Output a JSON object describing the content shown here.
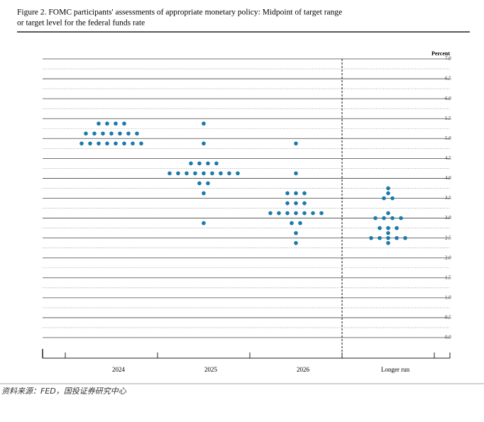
{
  "chart_data": {
    "type": "dot",
    "title": "Figure 2.  FOMC participants' assessments of appropriate monetary policy:  Midpoint of target range or target level for the federal funds rate",
    "title_lines": [
      "Figure 2.  FOMC participants' assessments of appropriate monetary policy:  Midpoint of target range",
      "or target level for the federal funds rate"
    ],
    "y_label": "Percent",
    "categories": [
      "2024",
      "2025",
      "2026",
      "Longer run"
    ],
    "color": "#1a7aaa",
    "ylim": [
      0,
      7
    ],
    "yticks": [
      {
        "value": 0,
        "label": "0.0"
      },
      {
        "value": 0.5,
        "label": "0.5"
      },
      {
        "value": 1,
        "label": "1.0"
      },
      {
        "value": 1.5,
        "label": "1.5"
      },
      {
        "value": 2,
        "label": "2.0"
      },
      {
        "value": 2.5,
        "label": "2.5"
      },
      {
        "value": 3,
        "label": "3.0"
      },
      {
        "value": 3.5,
        "label": "3.5"
      },
      {
        "value": 4,
        "label": "4.0"
      },
      {
        "value": 4.5,
        "label": "4.5"
      },
      {
        "value": 5,
        "label": "5.0"
      },
      {
        "value": 5.5,
        "label": "5.5"
      },
      {
        "value": 6,
        "label": "6.0"
      },
      {
        "value": 6.5,
        "label": "6.5"
      },
      {
        "value": 7,
        "label": "7.0"
      }
    ],
    "minor_yticks": [
      0.25,
      0.75,
      1.25,
      1.75,
      2.25,
      2.75,
      3.25,
      3.75,
      4.25,
      4.75,
      5.25,
      5.75,
      6.25,
      6.75
    ],
    "dots": [
      [
        {
          "value": 5.375,
          "count": 4
        },
        {
          "value": 5.125,
          "count": 7
        },
        {
          "value": 4.875,
          "count": 8
        }
      ],
      [
        {
          "value": 5.375,
          "count": 1
        },
        {
          "value": 4.875,
          "count": 1
        },
        {
          "value": 4.375,
          "count": 4
        },
        {
          "value": 4.125,
          "count": 9
        },
        {
          "value": 3.875,
          "count": 2
        },
        {
          "value": 3.625,
          "count": 1
        },
        {
          "value": 2.875,
          "count": 1
        }
      ],
      [
        {
          "value": 4.875,
          "count": 1
        },
        {
          "value": 4.125,
          "count": 1
        },
        {
          "value": 3.625,
          "count": 3
        },
        {
          "value": 3.375,
          "count": 3
        },
        {
          "value": 3.125,
          "count": 7
        },
        {
          "value": 2.875,
          "count": 2
        },
        {
          "value": 2.625,
          "count": 1
        },
        {
          "value": 2.375,
          "count": 1
        }
      ],
      [
        {
          "value": 3.75,
          "count": 1
        },
        {
          "value": 3.625,
          "count": 1
        },
        {
          "value": 3.5,
          "count": 2
        },
        {
          "value": 3.125,
          "count": 1
        },
        {
          "value": 3.0,
          "count": 4
        },
        {
          "value": 2.75,
          "count": 3
        },
        {
          "value": 2.625,
          "count": 1
        },
        {
          "value": 2.5,
          "count": 5
        },
        {
          "value": 2.375,
          "count": 1
        }
      ]
    ],
    "source": "资料来源：FED，国投证券研究中心"
  }
}
